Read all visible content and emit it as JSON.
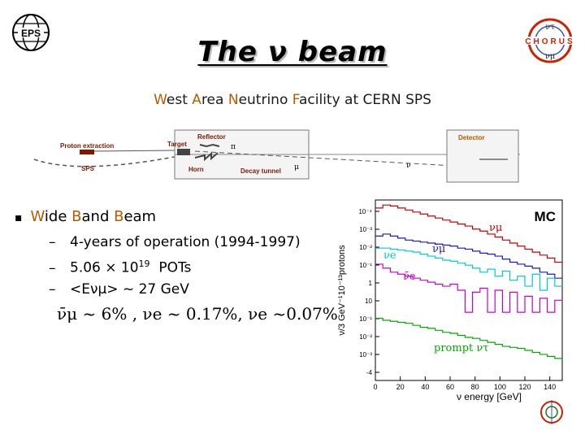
{
  "slide": {
    "title": "The ν beam",
    "subtitle_parts": [
      {
        "text": "W",
        "accent": true
      },
      {
        "text": "est ",
        "accent": false
      },
      {
        "text": "A",
        "accent": true
      },
      {
        "text": "rea ",
        "accent": false
      },
      {
        "text": "N",
        "accent": true
      },
      {
        "text": "eutrino ",
        "accent": false
      },
      {
        "text": "F",
        "accent": true
      },
      {
        "text": "acility at CERN SPS",
        "accent": false
      }
    ],
    "bullet": {
      "parts": [
        {
          "text": "W",
          "accent": true
        },
        {
          "text": "ide ",
          "accent": false
        },
        {
          "text": "B",
          "accent": true
        },
        {
          "text": "and ",
          "accent": false
        },
        {
          "text": "B",
          "accent": true
        },
        {
          "text": "eam",
          "accent": false
        }
      ],
      "subitems": [
        "4-years of operation (1994-1997)",
        "5.06 × 10",
        "<Eνμ> ~ 27 GeV"
      ],
      "pot_exponent": "19",
      "pot_suffix": "POTs"
    },
    "formula": "ν̄μ ~ 6% , νe ~ 0.17%, νe ~0.07%",
    "colors": {
      "accent": "#b45a00",
      "mc_red": "#cc0000",
      "mc_blue": "#1a1acc",
      "mc_cyan": "#00cccc",
      "mc_magenta": "#cc00cc",
      "mc_green": "#00aa00"
    }
  },
  "beamline": {
    "labels": {
      "proton_extraction": "Proton extraction",
      "sps": "SPS",
      "reflector": "Reflector",
      "target": "Target",
      "pi": "π",
      "horn": "Horn",
      "decay_tunnel": "Decay tunnel",
      "mu": "μ",
      "detector": "Detector",
      "nu": "ν"
    }
  },
  "chart_data": {
    "type": "line",
    "title": "MC",
    "xlabel": "ν energy [GeV]",
    "ylabel": "ν/3 GeV⁻¹10⁻¹³protons",
    "x_ticks": [
      0,
      20,
      40,
      60,
      80,
      100,
      120,
      140
    ],
    "y_ticks": [
      "10⁻⁴",
      "10⁻³",
      "10⁻²",
      "10⁻¹",
      "1",
      "10",
      "10⁻¹",
      "10⁻²",
      "10⁻³",
      "-4"
    ],
    "xlim": [
      0,
      150
    ],
    "y_log_exponent_range": [
      -5,
      4
    ],
    "series": [
      {
        "name": "νμ",
        "color": "#cc0000",
        "x": [
          3,
          9,
          15,
          21,
          27,
          33,
          39,
          45,
          51,
          57,
          63,
          69,
          75,
          81,
          87,
          93,
          99,
          105,
          111,
          117,
          123,
          129,
          135,
          141,
          147
        ],
        "log10_y": [
          3.6,
          3.75,
          3.7,
          3.6,
          3.5,
          3.4,
          3.3,
          3.2,
          3.1,
          3.0,
          2.9,
          2.8,
          2.7,
          2.55,
          2.45,
          2.3,
          2.15,
          2.0,
          1.85,
          1.7,
          1.55,
          1.4,
          1.25,
          1.1,
          0.9
        ]
      },
      {
        "name": "ν̄μ",
        "color": "#1a1acc",
        "x": [
          3,
          9,
          15,
          21,
          27,
          33,
          39,
          45,
          51,
          57,
          63,
          69,
          75,
          81,
          87,
          93,
          99,
          105,
          111,
          117,
          123,
          129,
          135,
          141,
          147
        ],
        "log10_y": [
          2.2,
          2.3,
          2.2,
          2.1,
          2.0,
          1.95,
          1.9,
          1.85,
          1.8,
          1.75,
          1.7,
          1.6,
          1.55,
          1.45,
          1.35,
          1.3,
          1.2,
          1.05,
          0.9,
          0.8,
          0.7,
          0.6,
          0.4,
          0.3,
          0.1
        ]
      },
      {
        "name": "νe",
        "color": "#00cccc",
        "x": [
          3,
          9,
          15,
          21,
          27,
          33,
          39,
          45,
          51,
          57,
          63,
          69,
          75,
          81,
          87,
          93,
          99,
          105,
          111,
          117,
          123,
          129,
          135,
          141,
          147
        ],
        "log10_y": [
          1.6,
          1.6,
          1.55,
          1.5,
          1.45,
          1.4,
          1.3,
          1.2,
          1.1,
          1.0,
          0.95,
          0.85,
          0.75,
          0.6,
          0.4,
          0.55,
          0.2,
          0.45,
          0.0,
          0.2,
          -0.3,
          0.3,
          -0.5,
          0.1,
          -0.3
        ]
      },
      {
        "name": "ν̄e",
        "color": "#cc00cc",
        "x": [
          3,
          9,
          15,
          21,
          27,
          33,
          39,
          45,
          51,
          57,
          63,
          69,
          75,
          81,
          87,
          93,
          99,
          105,
          111,
          117,
          123,
          129,
          135,
          141,
          147
        ],
        "log10_y": [
          0.8,
          0.6,
          0.4,
          0.3,
          0.2,
          0.1,
          0.0,
          -0.1,
          -0.2,
          -0.3,
          -0.2,
          -0.5,
          -1.6,
          -0.6,
          -0.4,
          -1.6,
          -0.5,
          -1.6,
          -0.6,
          -1.6,
          -0.8,
          -1.6,
          -0.9,
          -1.6,
          -1.0
        ]
      },
      {
        "name": "prompt ντ",
        "color": "#00aa00",
        "x": [
          3,
          9,
          15,
          21,
          27,
          33,
          39,
          45,
          51,
          57,
          63,
          69,
          75,
          81,
          87,
          93,
          99,
          105,
          111,
          117,
          123,
          129,
          135,
          141,
          147
        ],
        "log10_y": [
          -1.9,
          -2.0,
          -2.05,
          -2.1,
          -2.15,
          -2.25,
          -2.35,
          -2.4,
          -2.5,
          -2.6,
          -2.65,
          -2.75,
          -2.85,
          -2.9,
          -3.0,
          -3.1,
          -3.2,
          -3.3,
          -3.35,
          -3.4,
          -3.5,
          -3.6,
          -3.7,
          -3.8,
          -3.9
        ]
      }
    ]
  }
}
